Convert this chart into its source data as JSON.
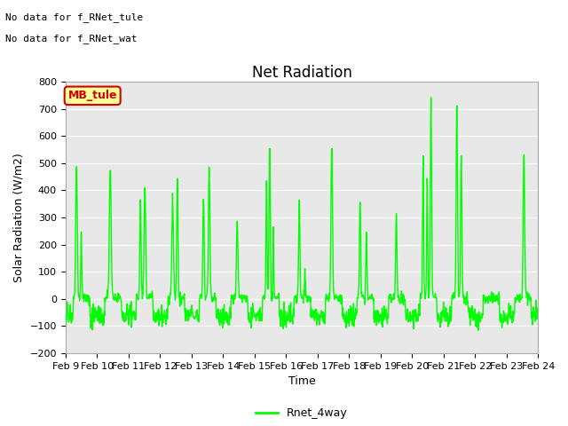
{
  "title": "Net Radiation",
  "xlabel": "Time",
  "ylabel": "Solar Radiation (W/m2)",
  "ylim": [
    -200,
    800
  ],
  "yticks": [
    -200,
    -100,
    0,
    100,
    200,
    300,
    400,
    500,
    600,
    700,
    800
  ],
  "line_color": "#00FF00",
  "line_width": 1.0,
  "background_color": "#ffffff",
  "plot_bg_color": "#e8e8e8",
  "grid_color": "#ffffff",
  "annotations": [
    "No data for f_RNet_tule",
    "No data for f_RNet_wat"
  ],
  "legend_label": "Rnet_4way",
  "legend_box_color": "#ffff99",
  "legend_box_edge": "#cc0000",
  "legend_text_color": "#cc0000",
  "xtick_labels": [
    "Feb 9",
    "Feb 10",
    "Feb 11",
    "Feb 12",
    "Feb 13",
    "Feb 14",
    "Feb 15",
    "Feb 16",
    "Feb 17",
    "Feb 18",
    "Feb 19",
    "Feb 20",
    "Feb 21",
    "Feb 22",
    "Feb 23",
    "Feb 24"
  ],
  "title_fontsize": 12,
  "axis_fontsize": 9,
  "tick_fontsize": 8,
  "annot_fontsize": 8
}
